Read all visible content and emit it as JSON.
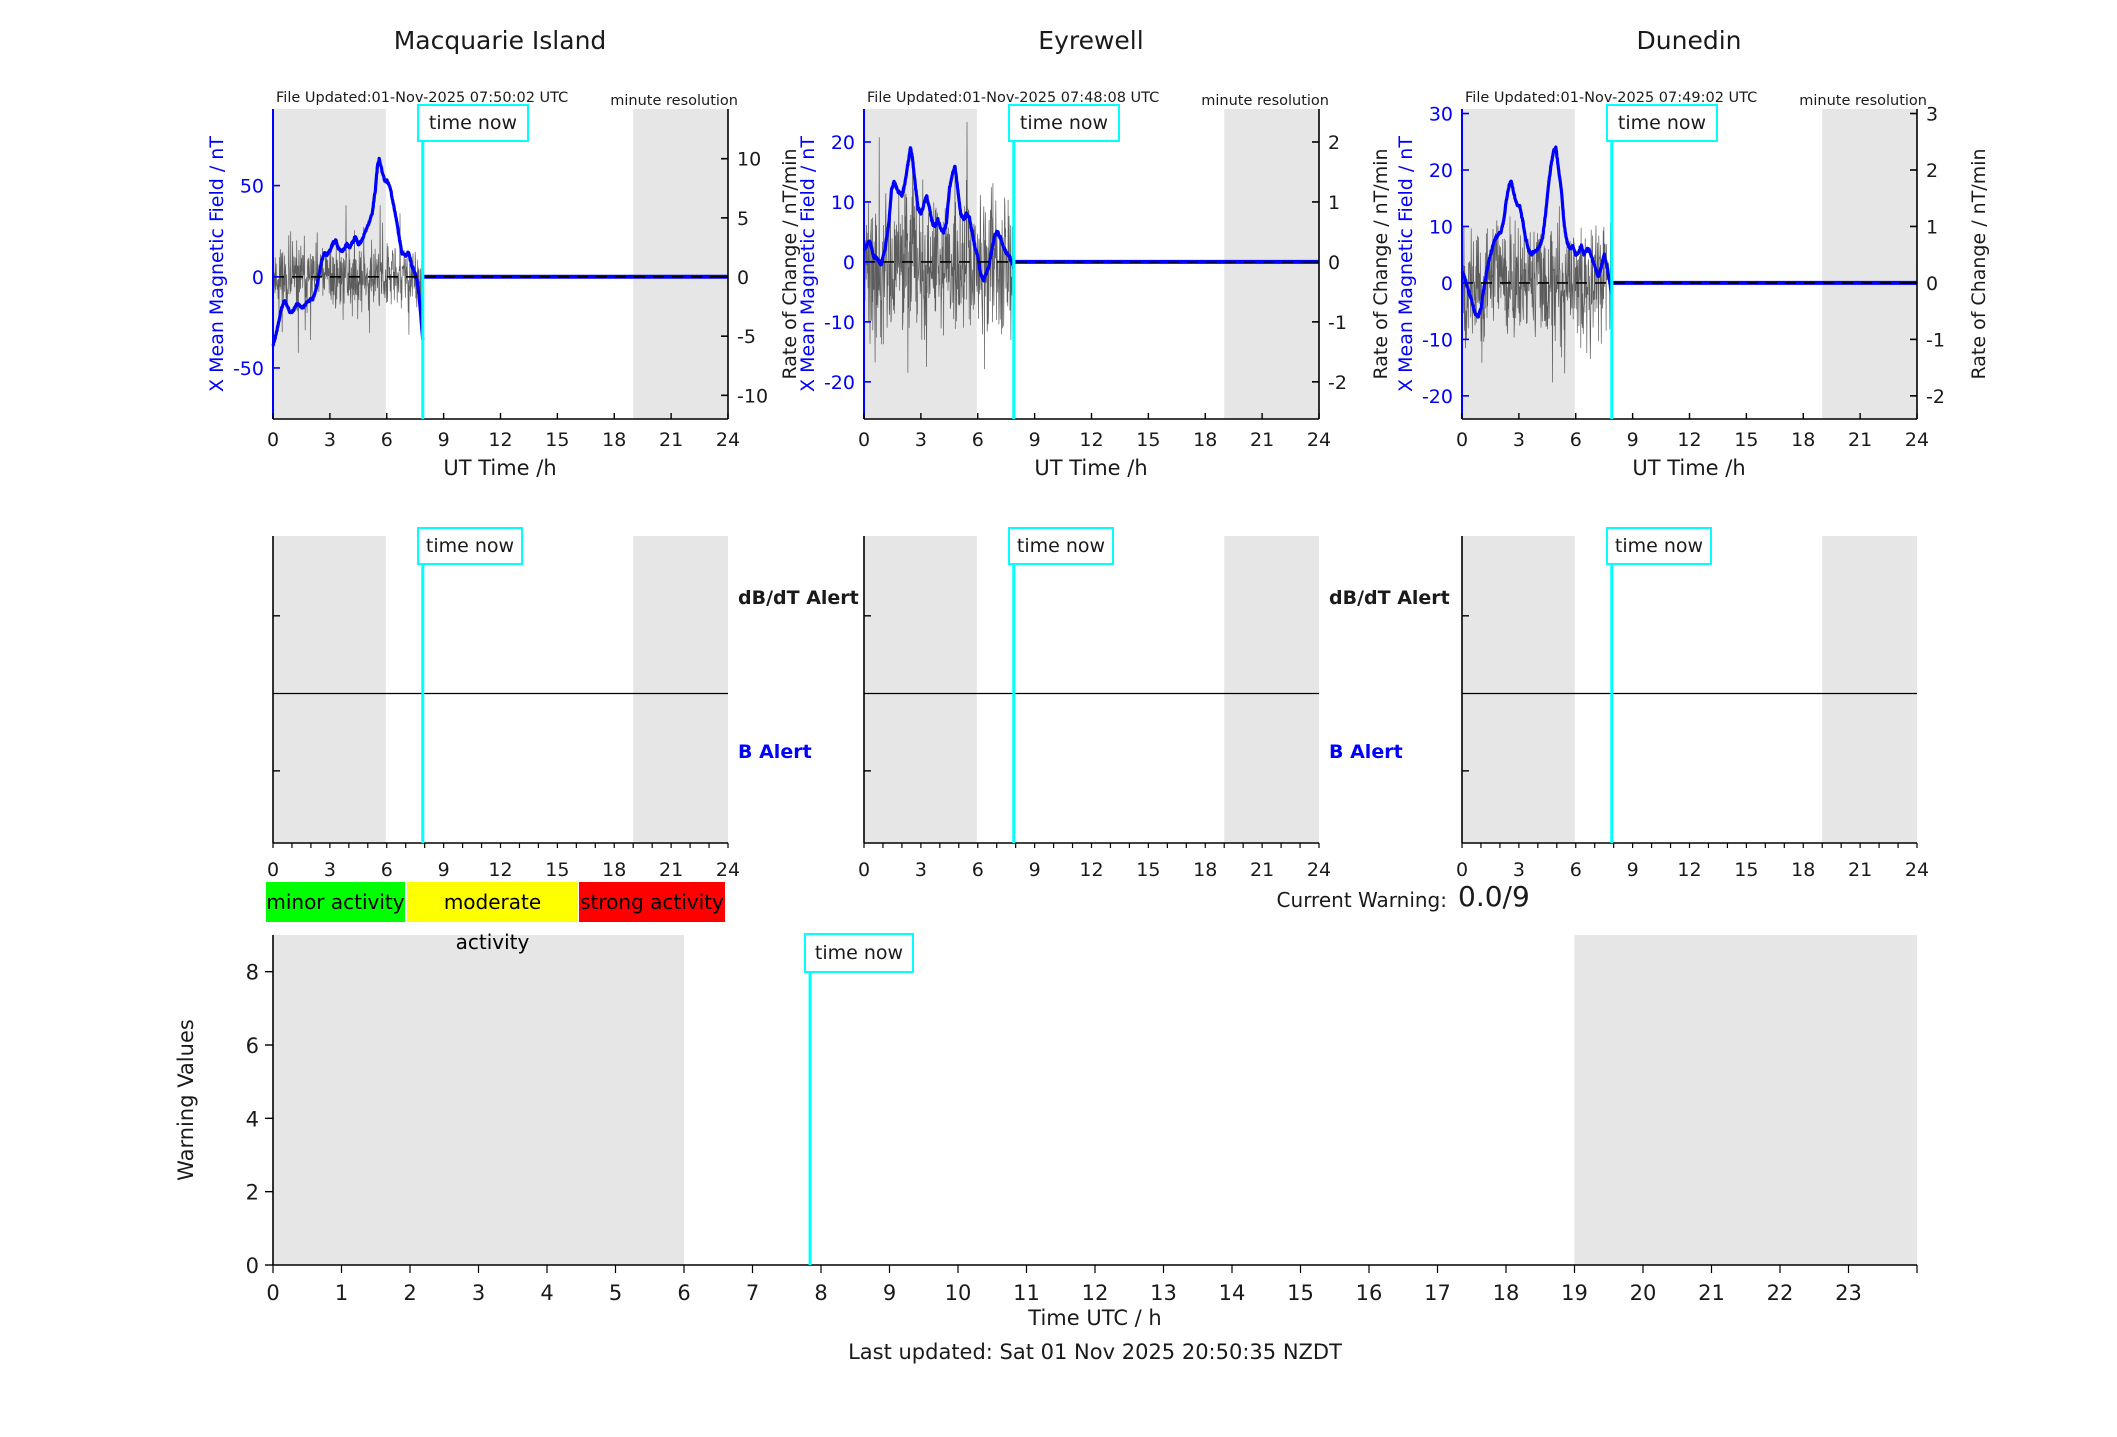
{
  "footer": {
    "text": "Last updated: Sat 01 Nov 2025 20:50:35 NZDT"
  },
  "current_warning": {
    "label": "Current Warning:",
    "value": "0.0/9"
  },
  "legend": [
    {
      "label": "minor activity",
      "color": "#00ff00"
    },
    {
      "label": "moderate activity",
      "color": "#ffff00"
    },
    {
      "label": "strong activity",
      "color": "#ff0000"
    }
  ],
  "colors": {
    "field_line": "#0000ff",
    "rate_line": "#4d4d4d",
    "time_now": "#00ffff",
    "shading": "#e6e6e6",
    "axis": "#000000"
  },
  "chart_data": [
    {
      "type": "line",
      "title": "Macquarie Island",
      "file_updated": "File Updated:01-Nov-2025 07:50:02 UTC",
      "resolution_note": "minute resolution",
      "time_now": {
        "label": "time now",
        "hour": 7.9
      },
      "x_axis": {
        "label": "UT Time /h",
        "ticks": [
          0,
          3,
          6,
          9,
          12,
          15,
          18,
          21,
          24
        ],
        "xlim": [
          0,
          24
        ]
      },
      "left_axis": {
        "label": "X Mean Magnetic Field / nT",
        "ticks": [
          50,
          0,
          -50
        ],
        "ylim": [
          -78,
          92
        ],
        "color": "#0000ff"
      },
      "right_axis": {
        "label": "Rate of Change / nT/min",
        "ticks": [
          10,
          5,
          0,
          -5,
          -10
        ],
        "ylim": [
          -12.0,
          14.2
        ]
      },
      "shaded_hours": [
        [
          0,
          5.95
        ],
        [
          19,
          24
        ]
      ],
      "flat_zero_after_time_now": true,
      "series": [
        {
          "name": "X Mean Magnetic Field / nT",
          "axis": "left",
          "color": "#0000ff",
          "anchors": [
            [
              0,
              -38
            ],
            [
              0.15,
              -32
            ],
            [
              0.3,
              -25
            ],
            [
              0.45,
              -17
            ],
            [
              0.6,
              -13
            ],
            [
              0.75,
              -16
            ],
            [
              0.9,
              -20
            ],
            [
              1.05,
              -19
            ],
            [
              1.2,
              -16
            ],
            [
              1.35,
              -15
            ],
            [
              1.5,
              -17
            ],
            [
              1.65,
              -16
            ],
            [
              1.8,
              -14
            ],
            [
              1.95,
              -13
            ],
            [
              2.1,
              -12
            ],
            [
              2.25,
              -8
            ],
            [
              2.4,
              0
            ],
            [
              2.55,
              8
            ],
            [
              2.7,
              13
            ],
            [
              2.85,
              12
            ],
            [
              3.0,
              14
            ],
            [
              3.15,
              18
            ],
            [
              3.3,
              20
            ],
            [
              3.45,
              16
            ],
            [
              3.6,
              14
            ],
            [
              3.75,
              15
            ],
            [
              3.9,
              18
            ],
            [
              4.05,
              16
            ],
            [
              4.2,
              19
            ],
            [
              4.35,
              22
            ],
            [
              4.5,
              18
            ],
            [
              4.65,
              19
            ],
            [
              4.8,
              23
            ],
            [
              4.95,
              27
            ],
            [
              5.1,
              30
            ],
            [
              5.25,
              36
            ],
            [
              5.4,
              48
            ],
            [
              5.5,
              60
            ],
            [
              5.6,
              65
            ],
            [
              5.75,
              58
            ],
            [
              5.9,
              53
            ],
            [
              6.05,
              52
            ],
            [
              6.2,
              48
            ],
            [
              6.35,
              40
            ],
            [
              6.5,
              32
            ],
            [
              6.65,
              22
            ],
            [
              6.8,
              13
            ],
            [
              7.0,
              12
            ],
            [
              7.15,
              13
            ],
            [
              7.3,
              7
            ],
            [
              7.45,
              3
            ],
            [
              7.6,
              -2
            ],
            [
              7.7,
              -10
            ],
            [
              7.8,
              -22
            ],
            [
              7.9,
              -35
            ]
          ]
        },
        {
          "name": "Rate of Change / nT/min",
          "axis": "right",
          "color": "#4d4d4d",
          "style": "noise",
          "seed": 11,
          "std": 1.4,
          "spike": 5.0,
          "range_h": [
            0,
            7.9
          ]
        }
      ]
    },
    {
      "type": "line",
      "title": "Eyrewell",
      "file_updated": "File Updated:01-Nov-2025 07:48:08 UTC",
      "resolution_note": "minute resolution",
      "time_now": {
        "label": "time now",
        "hour": 7.9
      },
      "x_axis": {
        "label": "UT Time /h",
        "ticks": [
          0,
          3,
          6,
          9,
          12,
          15,
          18,
          21,
          24
        ],
        "xlim": [
          0,
          24
        ]
      },
      "left_axis": {
        "label": "X Mean Magnetic Field / nT",
        "ticks": [
          20,
          10,
          0,
          -10,
          -20
        ],
        "ylim": [
          -26.2,
          25.5
        ],
        "color": "#0000ff"
      },
      "right_axis": {
        "label": "Rate of Change / nT/min",
        "ticks": [
          2,
          1,
          0,
          -1,
          -2
        ],
        "ylim": [
          -2.62,
          2.55
        ]
      },
      "shaded_hours": [
        [
          0,
          5.95
        ],
        [
          19,
          24
        ]
      ],
      "flat_zero_after_time_now": true,
      "series": [
        {
          "name": "X Mean Magnetic Field / nT",
          "axis": "left",
          "color": "#0000ff",
          "anchors": [
            [
              0,
              2
            ],
            [
              0.3,
              3.5
            ],
            [
              0.5,
              1
            ],
            [
              0.7,
              0.5
            ],
            [
              0.9,
              -0.5
            ],
            [
              1.1,
              2
            ],
            [
              1.3,
              6
            ],
            [
              1.45,
              12
            ],
            [
              1.6,
              13.5
            ],
            [
              1.75,
              12
            ],
            [
              1.9,
              11.5
            ],
            [
              2.0,
              11
            ],
            [
              2.15,
              13
            ],
            [
              2.3,
              16
            ],
            [
              2.45,
              19
            ],
            [
              2.55,
              17.5
            ],
            [
              2.7,
              13
            ],
            [
              2.85,
              9
            ],
            [
              3.0,
              8
            ],
            [
              3.15,
              9.5
            ],
            [
              3.3,
              11
            ],
            [
              3.45,
              9
            ],
            [
              3.6,
              6.5
            ],
            [
              3.75,
              6
            ],
            [
              3.9,
              7
            ],
            [
              4.05,
              5.5
            ],
            [
              4.2,
              5
            ],
            [
              4.35,
              6.5
            ],
            [
              4.5,
              12
            ],
            [
              4.65,
              14.5
            ],
            [
              4.8,
              16
            ],
            [
              4.95,
              12
            ],
            [
              5.1,
              8
            ],
            [
              5.25,
              7
            ],
            [
              5.4,
              8
            ],
            [
              5.55,
              7.5
            ],
            [
              5.7,
              5
            ],
            [
              5.85,
              2.5
            ],
            [
              6.0,
              1
            ],
            [
              6.15,
              -2
            ],
            [
              6.3,
              -3
            ],
            [
              6.45,
              -2
            ],
            [
              6.6,
              -0.5
            ],
            [
              6.75,
              2
            ],
            [
              6.9,
              4.5
            ],
            [
              7.05,
              5
            ],
            [
              7.2,
              4
            ],
            [
              7.35,
              2.5
            ],
            [
              7.5,
              1.5
            ],
            [
              7.65,
              1
            ],
            [
              7.8,
              0
            ],
            [
              7.9,
              -1
            ]
          ]
        },
        {
          "name": "Rate of Change / nT/min",
          "axis": "right",
          "color": "#4d4d4d",
          "style": "noise",
          "seed": 22,
          "std": 0.6,
          "spike": 1.35,
          "range_h": [
            0,
            7.9
          ]
        }
      ]
    },
    {
      "type": "line",
      "title": "Dunedin",
      "file_updated": "File Updated:01-Nov-2025 07:49:02 UTC",
      "resolution_note": "minute resolution",
      "time_now": {
        "label": "time now",
        "hour": 7.9
      },
      "x_axis": {
        "label": "UT Time /h",
        "ticks": [
          0,
          3,
          6,
          9,
          12,
          15,
          18,
          21,
          24
        ],
        "xlim": [
          0,
          24
        ]
      },
      "left_axis": {
        "label": "X Mean Magnetic Field / nT",
        "ticks": [
          30,
          20,
          10,
          0,
          -10,
          -20
        ],
        "ylim": [
          -24.1,
          30.8
        ],
        "color": "#0000ff"
      },
      "right_axis": {
        "label": "Rate of Change / nT/min",
        "ticks": [
          3,
          2,
          1,
          0,
          -1,
          -2
        ],
        "ylim": [
          -2.41,
          3.08
        ]
      },
      "shaded_hours": [
        [
          0,
          5.95
        ],
        [
          19,
          24
        ]
      ],
      "flat_zero_after_time_now": true,
      "series": [
        {
          "name": "X Mean Magnetic Field / nT",
          "axis": "left",
          "color": "#0000ff",
          "anchors": [
            [
              0,
              2
            ],
            [
              0.15,
              1
            ],
            [
              0.3,
              -1
            ],
            [
              0.5,
              -3
            ],
            [
              0.7,
              -5.5
            ],
            [
              0.85,
              -6
            ],
            [
              1.0,
              -4.5
            ],
            [
              1.15,
              -1
            ],
            [
              1.3,
              2
            ],
            [
              1.5,
              5
            ],
            [
              1.7,
              7.5
            ],
            [
              1.9,
              8.5
            ],
            [
              2.05,
              9
            ],
            [
              2.2,
              11
            ],
            [
              2.35,
              15
            ],
            [
              2.5,
              17.5
            ],
            [
              2.6,
              18
            ],
            [
              2.75,
              15.5
            ],
            [
              2.9,
              14
            ],
            [
              3.05,
              13.5
            ],
            [
              3.2,
              11
            ],
            [
              3.35,
              8
            ],
            [
              3.5,
              6
            ],
            [
              3.65,
              5
            ],
            [
              3.8,
              5.5
            ],
            [
              3.95,
              6
            ],
            [
              4.1,
              6.5
            ],
            [
              4.25,
              8
            ],
            [
              4.4,
              12
            ],
            [
              4.55,
              17
            ],
            [
              4.7,
              21
            ],
            [
              4.85,
              23.5
            ],
            [
              4.95,
              24
            ],
            [
              5.1,
              20
            ],
            [
              5.25,
              16
            ],
            [
              5.4,
              10
            ],
            [
              5.55,
              7
            ],
            [
              5.7,
              6
            ],
            [
              5.85,
              6.5
            ],
            [
              6.0,
              5
            ],
            [
              6.15,
              5.5
            ],
            [
              6.3,
              6.5
            ],
            [
              6.45,
              5
            ],
            [
              6.6,
              6
            ],
            [
              6.75,
              5.5
            ],
            [
              6.9,
              4
            ],
            [
              7.05,
              2.5
            ],
            [
              7.2,
              1
            ],
            [
              7.35,
              3
            ],
            [
              7.5,
              5
            ],
            [
              7.65,
              3
            ],
            [
              7.8,
              0
            ],
            [
              7.9,
              -2
            ]
          ]
        },
        {
          "name": "Rate of Change / nT/min",
          "axis": "right",
          "color": "#4d4d4d",
          "style": "noise",
          "seed": 33,
          "std": 0.5,
          "spike": 1.2,
          "range_h": [
            0,
            7.9
          ]
        }
      ]
    },
    {
      "type": "line",
      "subtype": "alert-timeline",
      "panels": 3,
      "dbdt_label": "dB/dT Alert",
      "b_label": "B Alert",
      "b_label_color": "#0000ff",
      "time_now": {
        "label": "time now",
        "hour": 7.9
      },
      "x_axis": {
        "ticks": [
          0,
          3,
          6,
          9,
          12,
          15,
          18,
          21,
          24
        ],
        "minor_every": 1,
        "xlim": [
          0,
          24
        ]
      },
      "shaded_hours": [
        [
          0,
          5.95
        ],
        [
          19,
          24
        ]
      ],
      "series": []
    },
    {
      "type": "line",
      "subtype": "warning-values",
      "ylabel": "Warning Values",
      "xlabel": "Time UTC / h",
      "ylim": [
        0,
        9
      ],
      "yticks": [
        0,
        2,
        4,
        6,
        8
      ],
      "xlim": [
        0,
        24
      ],
      "xticks": [
        0,
        1,
        2,
        3,
        4,
        5,
        6,
        7,
        8,
        9,
        10,
        11,
        12,
        13,
        14,
        15,
        16,
        17,
        18,
        19,
        20,
        21,
        22,
        23
      ],
      "time_now": {
        "label": "time now",
        "hour": 7.84
      },
      "shaded_hours": [
        [
          0,
          6
        ],
        [
          19,
          24
        ]
      ],
      "series": []
    }
  ]
}
